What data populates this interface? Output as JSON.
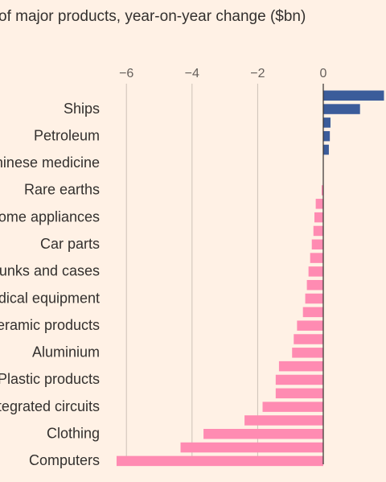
{
  "chart_data": {
    "type": "bar",
    "orientation": "horizontal",
    "title": "of major products, year-on-year change ($bn)",
    "xlabel": "",
    "ylabel": "",
    "xlim": [
      -6.4,
      1.9
    ],
    "xticks": [
      -6,
      -4,
      -2,
      0
    ],
    "grid": true,
    "colors": {
      "positive": "#3b5c9a",
      "negative": "#ff8bb2",
      "background": "#fff1e5"
    },
    "bars": [
      {
        "label": "",
        "value": 1.85
      },
      {
        "label": "Ships",
        "value": 1.12
      },
      {
        "label": "",
        "value": 0.22
      },
      {
        "label": "Petroleum",
        "value": 0.2
      },
      {
        "label": "",
        "value": 0.17
      },
      {
        "label": "Chinese medicine",
        "value": 0.01
      },
      {
        "label": "",
        "value": 0.0
      },
      {
        "label": "Rare earths",
        "value": -0.05
      },
      {
        "label": "",
        "value": -0.23
      },
      {
        "label": "Home appliances",
        "value": -0.27
      },
      {
        "label": "",
        "value": -0.3
      },
      {
        "label": "Car parts",
        "value": -0.35
      },
      {
        "label": "",
        "value": -0.4
      },
      {
        "label": "Trunks and cases",
        "value": -0.45
      },
      {
        "label": "",
        "value": -0.5
      },
      {
        "label": "Medical equipment",
        "value": -0.55
      },
      {
        "label": "",
        "value": -0.62
      },
      {
        "label": "Ceramic products",
        "value": -0.8
      },
      {
        "label": "",
        "value": -0.9
      },
      {
        "label": "Aluminium",
        "value": -0.95
      },
      {
        "label": "",
        "value": -1.35
      },
      {
        "label": "Plastic products",
        "value": -1.45
      },
      {
        "label": "",
        "value": -1.45
      },
      {
        "label": "Integrated circuits",
        "value": -1.85
      },
      {
        "label": "",
        "value": -2.4
      },
      {
        "label": "Clothing",
        "value": -3.65
      },
      {
        "label": "",
        "value": -4.35
      },
      {
        "label": "Computers",
        "value": -6.3
      }
    ]
  }
}
